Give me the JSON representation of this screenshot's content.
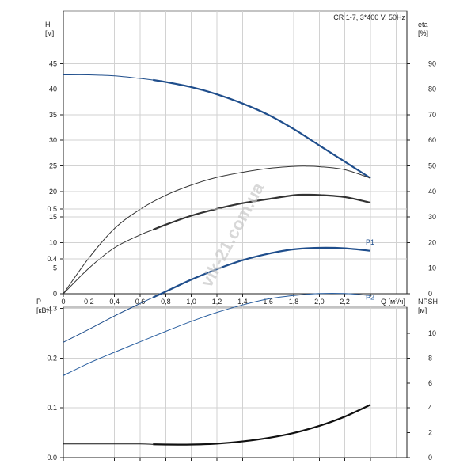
{
  "chart_data": [
    {
      "type": "line",
      "title": "CR 1-7, 3*400 V, 50Hz",
      "xlabel": "Q [м³/ч]",
      "ylabel_left": "H\n[м]",
      "ylabel_right": "eta\n[%]",
      "xlim": [
        0,
        2.4
      ],
      "ylim_left": [
        0,
        50
      ],
      "ylim_right": [
        0,
        100
      ],
      "x_ticks": [
        "0",
        "0,2",
        "0,4",
        "0,6",
        "0,8",
        "1,0",
        "1,2",
        "1,4",
        "1,6",
        "1,8",
        "2,0",
        "2,2"
      ],
      "y_left_ticks": [
        "0",
        "5",
        "10",
        "15",
        "20",
        "25",
        "30",
        "35",
        "40",
        "45"
      ],
      "y_right_ticks": [
        "0",
        "10",
        "20",
        "30",
        "40",
        "50",
        "60",
        "70",
        "80",
        "90"
      ],
      "grid": true,
      "series": [
        {
          "axis": "left",
          "color": "#1f4e8c",
          "x": [
            0,
            0.2,
            0.4,
            0.6,
            0.7,
            0.8,
            1.0,
            1.2,
            1.4,
            1.6,
            1.8,
            2.0,
            2.2,
            2.4
          ],
          "y": [
            42.8,
            42.8,
            42.6,
            42.1,
            41.8,
            41.4,
            40.4,
            39.0,
            37.2,
            35.0,
            32.2,
            29.0,
            25.8,
            22.6
          ]
        },
        {
          "axis": "right",
          "color": "#333333",
          "x": [
            0,
            0.2,
            0.4,
            0.6,
            0.8,
            1.0,
            1.2,
            1.4,
            1.6,
            1.8,
            1.9,
            2.0,
            2.2,
            2.4
          ],
          "y": [
            0,
            14,
            25.5,
            33,
            38.5,
            42.5,
            45.5,
            47.5,
            49,
            49.8,
            49.9,
            49.7,
            48.5,
            45.2
          ]
        },
        {
          "axis": "right",
          "color": "#333333",
          "x": [
            0,
            0.2,
            0.4,
            0.6,
            0.7,
            0.8,
            1.0,
            1.2,
            1.4,
            1.6,
            1.8,
            1.9,
            2.0,
            2.2,
            2.4
          ],
          "y": [
            0,
            10,
            18,
            23,
            25,
            27,
            30.5,
            33.2,
            35.4,
            37,
            38.5,
            38.7,
            38.6,
            37.8,
            35.6
          ]
        }
      ]
    },
    {
      "type": "line",
      "xlabel": "",
      "ylabel_left": "P\n[кВт]",
      "ylabel_right": "NPSH\n[м]",
      "xlim": [
        0,
        2.4
      ],
      "ylim_left": [
        0,
        0.5
      ],
      "ylim_right": [
        0,
        10
      ],
      "y_left_ticks": [
        "0.0",
        "0.1",
        "0.2",
        "0.3",
        "0.4",
        "0.5"
      ],
      "y_right_ticks": [
        "0",
        "2",
        "4",
        "6",
        "8",
        "10"
      ],
      "grid": true,
      "series": [
        {
          "name": "P1",
          "axis": "left",
          "color": "#1f4e8c",
          "x": [
            0,
            0.2,
            0.4,
            0.6,
            0.7,
            0.8,
            1.0,
            1.2,
            1.4,
            1.6,
            1.8,
            2.0,
            2.2,
            2.4
          ],
          "y": [
            0.232,
            0.258,
            0.285,
            0.31,
            0.322,
            0.334,
            0.358,
            0.379,
            0.397,
            0.41,
            0.419,
            0.422,
            0.421,
            0.416
          ]
        },
        {
          "name": "P2",
          "axis": "left",
          "color": "#2a5fa0",
          "x": [
            0,
            0.2,
            0.4,
            0.6,
            0.8,
            1.0,
            1.2,
            1.4,
            1.6,
            1.8,
            2.0,
            2.2,
            2.4
          ],
          "y": [
            0.165,
            0.19,
            0.212,
            0.233,
            0.254,
            0.274,
            0.292,
            0.307,
            0.319,
            0.326,
            0.33,
            0.33,
            0.326
          ]
        },
        {
          "axis": "right",
          "color": "#111111",
          "x": [
            0,
            0.2,
            0.4,
            0.6,
            0.7,
            0.8,
            1.0,
            1.2,
            1.4,
            1.6,
            1.8,
            2.0,
            2.2,
            2.4
          ],
          "y": [
            1.1,
            1.1,
            1.1,
            1.1,
            1.07,
            1.05,
            1.05,
            1.12,
            1.3,
            1.58,
            1.98,
            2.55,
            3.3,
            4.25
          ]
        }
      ]
    }
  ],
  "watermark": "vik-21.com.ua"
}
